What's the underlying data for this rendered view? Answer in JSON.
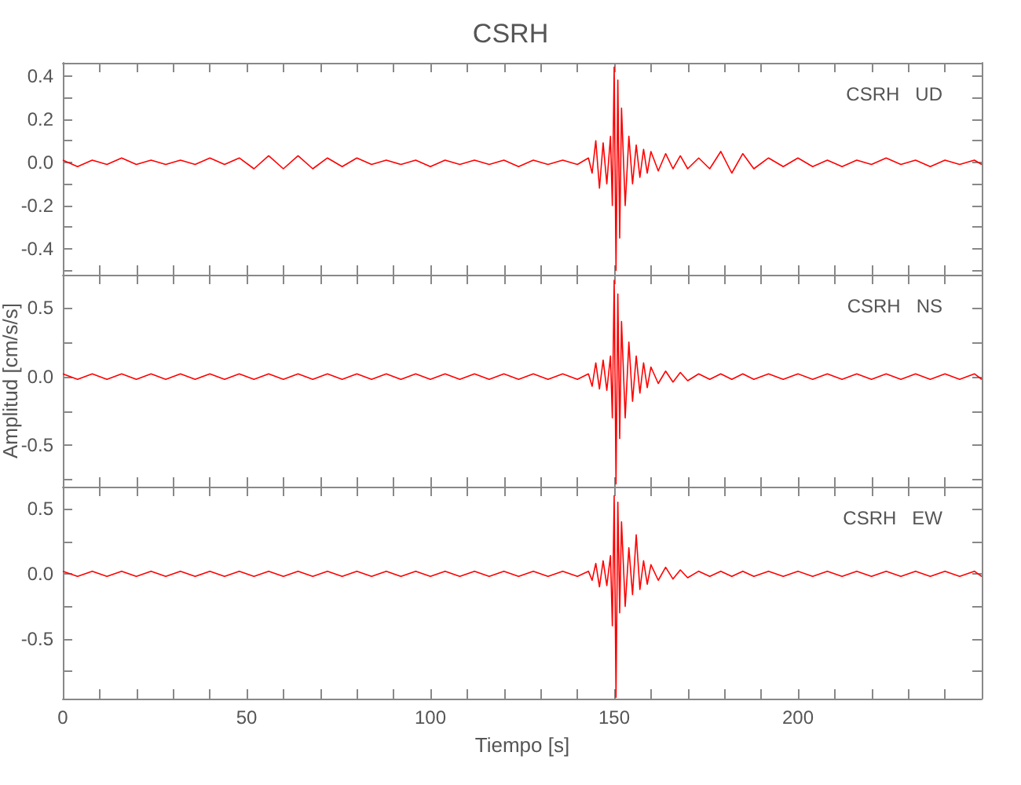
{
  "chart_data": [
    {
      "type": "line",
      "title": "CSRH",
      "annotations": [
        "CSRH   UD"
      ],
      "tick_labels": "y",
      "grid": false,
      "xlim": [
        0,
        250
      ],
      "xticks": [
        0,
        {
          "value": 10,
          "label": null
        },
        {
          "value": 20,
          "label": null
        },
        {
          "value": 30,
          "label": null
        },
        {
          "value": 40,
          "label": null
        },
        50,
        {
          "value": 60,
          "label": null
        },
        {
          "value": 70,
          "label": null
        },
        {
          "value": 80,
          "label": null
        },
        {
          "value": 90,
          "label": null
        },
        100,
        {
          "value": 110,
          "label": null
        },
        {
          "value": 120,
          "label": null
        },
        {
          "value": 130,
          "label": null
        },
        {
          "value": 140,
          "label": null
        },
        150,
        {
          "value": 160,
          "label": null
        },
        {
          "value": 170,
          "label": null
        },
        {
          "value": 180,
          "label": null
        },
        {
          "value": 190,
          "label": null
        },
        200,
        {
          "value": 210,
          "label": null
        },
        {
          "value": 220,
          "label": null
        },
        {
          "value": 230,
          "label": null
        },
        {
          "value": 240,
          "label": null
        }
      ],
      "ylim": [
        -0.52,
        0.46
      ],
      "yticks": [
        {
          "value": -0.5,
          "label": null
        },
        -0.4,
        {
          "value": -0.3,
          "label": null
        },
        -0.2,
        {
          "value": -0.1,
          "label": null
        },
        {
          "value": 0,
          "label": "0.0"
        },
        {
          "value": 0.1,
          "label": null
        },
        0.2,
        {
          "value": 0.3,
          "label": null
        },
        0.4
      ],
      "x": [
        0,
        4,
        8,
        12,
        16,
        20,
        24,
        28,
        32,
        36,
        40,
        44,
        48,
        52,
        56,
        60,
        64,
        68,
        72,
        76,
        80,
        84,
        88,
        92,
        96,
        100,
        104,
        108,
        112,
        116,
        120,
        124,
        128,
        132,
        136,
        140,
        143,
        144,
        145,
        146,
        147,
        148,
        149,
        149.5,
        150,
        150.5,
        151,
        151.5,
        152,
        153,
        154,
        155,
        156,
        157,
        158,
        159,
        160,
        162,
        164,
        166,
        168,
        170,
        173,
        176,
        179,
        182,
        185,
        188,
        192,
        196,
        200,
        204,
        208,
        212,
        216,
        220,
        224,
        228,
        232,
        236,
        240,
        244,
        248,
        250
      ],
      "series": [
        {
          "color": "#ff0000",
          "values": [
            0.01,
            -0.02,
            0.01,
            -0.01,
            0.02,
            -0.01,
            0.01,
            -0.01,
            0.01,
            -0.01,
            0.02,
            -0.01,
            0.02,
            -0.03,
            0.03,
            -0.03,
            0.03,
            -0.03,
            0.02,
            -0.02,
            0.02,
            -0.01,
            0.01,
            -0.01,
            0.01,
            -0.02,
            0.01,
            -0.01,
            0.01,
            -0.01,
            0.01,
            -0.02,
            0.01,
            -0.01,
            0.01,
            -0.01,
            0.02,
            -0.05,
            0.1,
            -0.12,
            0.09,
            -0.1,
            0.12,
            -0.2,
            0.44,
            -0.5,
            0.38,
            -0.35,
            0.25,
            -0.2,
            0.12,
            -0.1,
            0.08,
            -0.07,
            0.06,
            -0.05,
            0.05,
            -0.04,
            0.04,
            -0.03,
            0.03,
            -0.03,
            0.02,
            -0.03,
            0.05,
            -0.05,
            0.04,
            -0.03,
            0.02,
            -0.02,
            0.02,
            -0.02,
            0.01,
            -0.02,
            0.01,
            -0.01,
            0.02,
            -0.01,
            0.01,
            -0.02,
            0.01,
            -0.01,
            0.01,
            -0.01
          ]
        }
      ]
    },
    {
      "type": "line",
      "ylabel": "Amplitud [cm/s/s]",
      "annotations": [
        "CSRH   NS"
      ],
      "tick_labels": "y",
      "grid": false,
      "xlim": [
        0,
        250
      ],
      "xticks": [
        0,
        {
          "value": 10,
          "label": null
        },
        {
          "value": 20,
          "label": null
        },
        {
          "value": 30,
          "label": null
        },
        {
          "value": 40,
          "label": null
        },
        50,
        {
          "value": 60,
          "label": null
        },
        {
          "value": 70,
          "label": null
        },
        {
          "value": 80,
          "label": null
        },
        {
          "value": 90,
          "label": null
        },
        100,
        {
          "value": 110,
          "label": null
        },
        {
          "value": 120,
          "label": null
        },
        {
          "value": 130,
          "label": null
        },
        {
          "value": 140,
          "label": null
        },
        150,
        {
          "value": 160,
          "label": null
        },
        {
          "value": 170,
          "label": null
        },
        {
          "value": 180,
          "label": null
        },
        {
          "value": 190,
          "label": null
        },
        200,
        {
          "value": 210,
          "label": null
        },
        {
          "value": 220,
          "label": null
        },
        {
          "value": 230,
          "label": null
        },
        {
          "value": 240,
          "label": null
        }
      ],
      "ylim": [
        -0.8,
        0.74
      ],
      "yticks": [
        {
          "value": -0.75,
          "label": null
        },
        -0.5,
        {
          "value": -0.25,
          "label": null
        },
        {
          "value": 0,
          "label": "0.0"
        },
        {
          "value": 0.25,
          "label": null
        },
        0.5
      ],
      "x": [
        0,
        4,
        8,
        12,
        16,
        20,
        24,
        28,
        32,
        36,
        40,
        44,
        48,
        52,
        56,
        60,
        64,
        68,
        72,
        76,
        80,
        84,
        88,
        92,
        96,
        100,
        104,
        108,
        112,
        116,
        120,
        124,
        128,
        132,
        136,
        140,
        143,
        144,
        145,
        146,
        147,
        148,
        149,
        149.5,
        150,
        150.5,
        151,
        151.5,
        152,
        153,
        154,
        155,
        156,
        157,
        158,
        159,
        160,
        162,
        164,
        166,
        168,
        170,
        173,
        176,
        179,
        182,
        185,
        188,
        192,
        196,
        200,
        204,
        208,
        212,
        216,
        220,
        224,
        228,
        232,
        236,
        240,
        244,
        248,
        250
      ],
      "series": [
        {
          "color": "#ff0000",
          "values": [
            0.02,
            -0.02,
            0.02,
            -0.02,
            0.02,
            -0.02,
            0.02,
            -0.02,
            0.02,
            -0.02,
            0.02,
            -0.02,
            0.02,
            -0.02,
            0.02,
            -0.02,
            0.02,
            -0.02,
            0.02,
            -0.02,
            0.02,
            -0.02,
            0.02,
            -0.02,
            0.02,
            -0.02,
            0.02,
            -0.02,
            0.02,
            -0.02,
            0.02,
            -0.02,
            0.02,
            -0.02,
            0.02,
            -0.02,
            0.02,
            -0.07,
            0.1,
            -0.09,
            0.12,
            -0.1,
            0.15,
            -0.3,
            0.7,
            -0.78,
            0.6,
            -0.45,
            0.4,
            -0.3,
            0.25,
            -0.18,
            0.15,
            -0.12,
            0.1,
            -0.08,
            0.07,
            -0.05,
            0.04,
            -0.04,
            0.03,
            -0.03,
            0.02,
            -0.02,
            0.02,
            -0.02,
            0.02,
            -0.02,
            0.02,
            -0.02,
            0.02,
            -0.02,
            0.02,
            -0.02,
            0.02,
            -0.02,
            0.02,
            -0.02,
            0.02,
            -0.02,
            0.02,
            -0.02,
            0.02,
            -0.02
          ]
        }
      ]
    },
    {
      "type": "line",
      "xlabel": "Tiempo [s]",
      "annotations": [
        "CSRH   EW"
      ],
      "grid": false,
      "xlim": [
        0,
        250
      ],
      "xticks": [
        0,
        {
          "value": 10,
          "label": null
        },
        {
          "value": 20,
          "label": null
        },
        {
          "value": 30,
          "label": null
        },
        {
          "value": 40,
          "label": null
        },
        50,
        {
          "value": 60,
          "label": null
        },
        {
          "value": 70,
          "label": null
        },
        {
          "value": 80,
          "label": null
        },
        {
          "value": 90,
          "label": null
        },
        100,
        {
          "value": 110,
          "label": null
        },
        {
          "value": 120,
          "label": null
        },
        {
          "value": 130,
          "label": null
        },
        {
          "value": 140,
          "label": null
        },
        150,
        {
          "value": 160,
          "label": null
        },
        {
          "value": 170,
          "label": null
        },
        {
          "value": 180,
          "label": null
        },
        {
          "value": 190,
          "label": null
        },
        200,
        {
          "value": 210,
          "label": null
        },
        {
          "value": 220,
          "label": null
        },
        {
          "value": 230,
          "label": null
        },
        {
          "value": 240,
          "label": null
        }
      ],
      "ylim": [
        -0.96,
        0.67
      ],
      "yticks": [
        {
          "value": -0.75,
          "label": null
        },
        -0.5,
        {
          "value": -0.25,
          "label": null
        },
        {
          "value": 0,
          "label": "0.0"
        },
        {
          "value": 0.25,
          "label": null
        },
        0.5
      ],
      "x": [
        0,
        4,
        8,
        12,
        16,
        20,
        24,
        28,
        32,
        36,
        40,
        44,
        48,
        52,
        56,
        60,
        64,
        68,
        72,
        76,
        80,
        84,
        88,
        92,
        96,
        100,
        104,
        108,
        112,
        116,
        120,
        124,
        128,
        132,
        136,
        140,
        143,
        144,
        145,
        146,
        147,
        148,
        149,
        149.5,
        150,
        150.5,
        151,
        151.5,
        152,
        153,
        154,
        155,
        156,
        157,
        158,
        159,
        160,
        162,
        164,
        166,
        168,
        170,
        173,
        176,
        179,
        182,
        185,
        188,
        192,
        196,
        200,
        204,
        208,
        212,
        216,
        220,
        224,
        228,
        232,
        236,
        240,
        244,
        248,
        250
      ],
      "series": [
        {
          "color": "#ff0000",
          "values": [
            0.02,
            -0.02,
            0.02,
            -0.02,
            0.02,
            -0.02,
            0.02,
            -0.02,
            0.02,
            -0.02,
            0.02,
            -0.02,
            0.02,
            -0.02,
            0.02,
            -0.02,
            0.02,
            -0.02,
            0.02,
            -0.02,
            0.02,
            -0.02,
            0.02,
            -0.02,
            0.02,
            -0.02,
            0.02,
            -0.02,
            0.02,
            -0.02,
            0.02,
            -0.02,
            0.02,
            -0.02,
            0.02,
            -0.02,
            0.02,
            -0.05,
            0.08,
            -0.1,
            0.1,
            -0.09,
            0.14,
            -0.4,
            0.6,
            -0.95,
            0.55,
            -0.3,
            0.4,
            -0.25,
            0.2,
            -0.16,
            0.3,
            -0.12,
            0.1,
            -0.08,
            0.07,
            -0.05,
            0.05,
            -0.04,
            0.03,
            -0.03,
            0.02,
            -0.02,
            0.02,
            -0.02,
            0.02,
            -0.02,
            0.02,
            -0.02,
            0.02,
            -0.02,
            0.02,
            -0.02,
            0.02,
            -0.02,
            0.02,
            -0.02,
            0.02,
            -0.02,
            0.02,
            -0.02,
            0.02,
            -0.02
          ]
        }
      ]
    }
  ]
}
